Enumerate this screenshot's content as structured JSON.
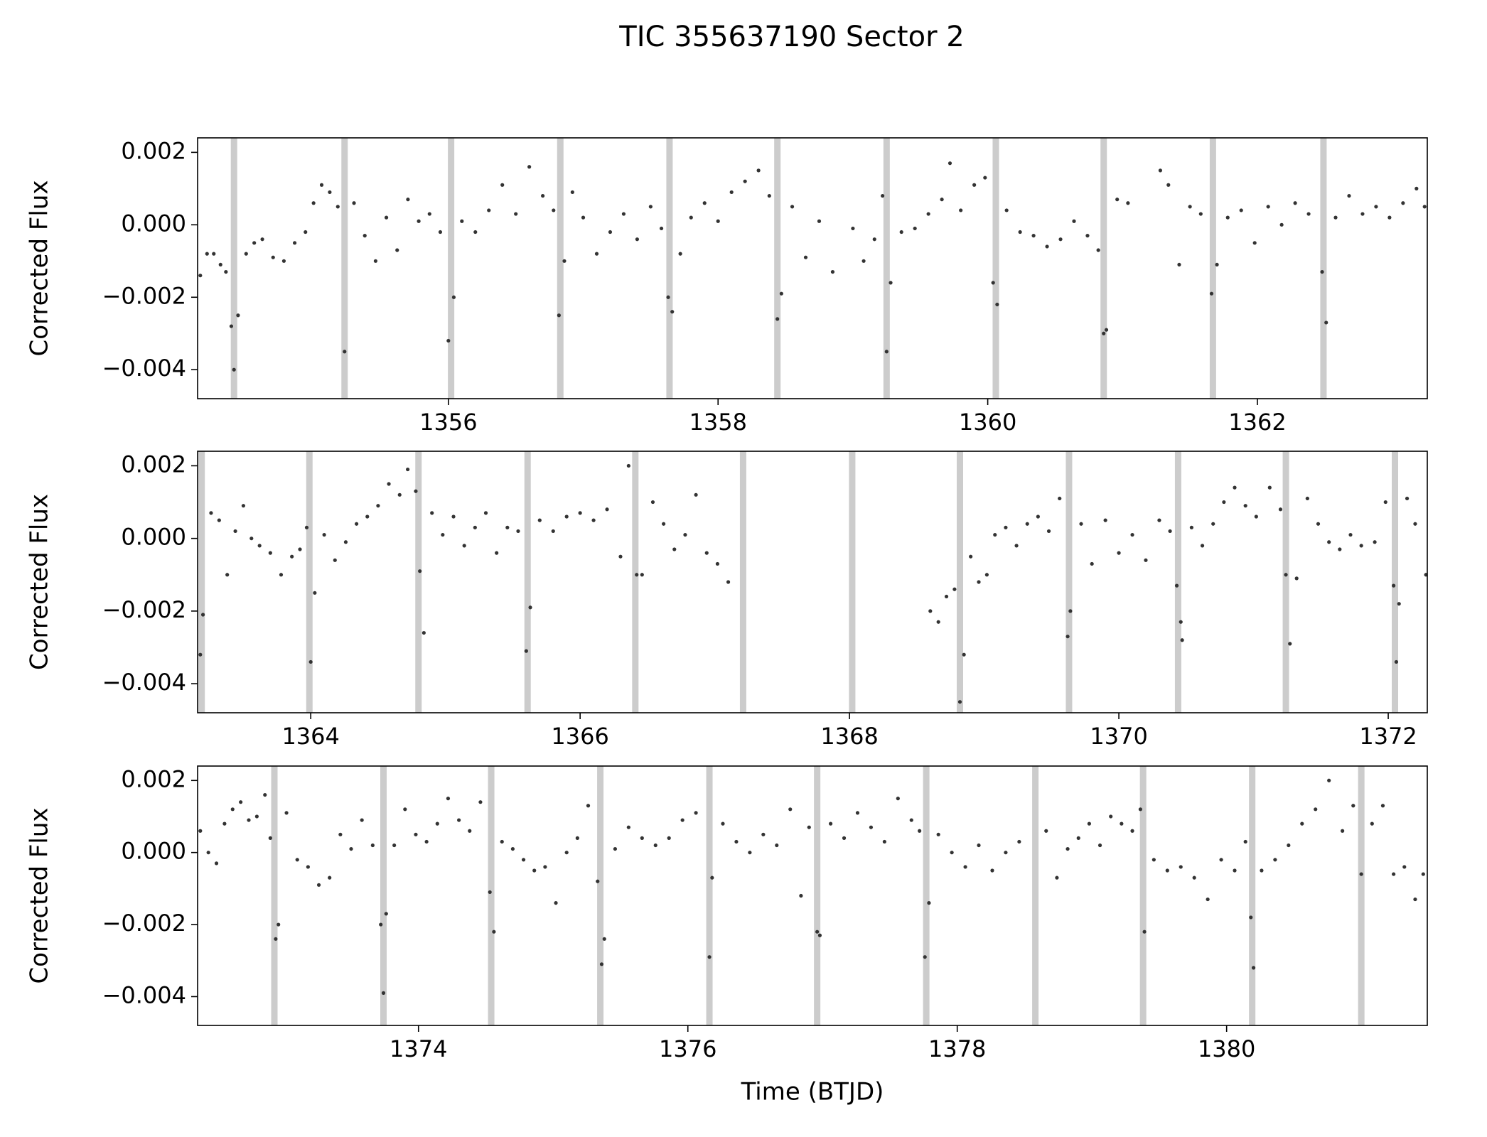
{
  "title": "TIC 355637190     Sector 2",
  "chart_data": [
    {
      "type": "scatter",
      "ylabel": "Corrected Flux",
      "color": "#333333",
      "band_color": "#cccccc",
      "xlim": [
        1354.14,
        1363.26
      ],
      "ylim": [
        -0.0048,
        0.0024
      ],
      "xticks": [
        1356,
        1358,
        1360,
        1362
      ],
      "yticks": [
        0.002,
        {
          "value": 0,
          "label": "0.000"
        },
        {
          "value": -0.002,
          "label": "−0.002"
        },
        {
          "value": -0.004,
          "label": "−0.004"
        }
      ],
      "transits": [
        1354.41,
        1355.23,
        1356.02,
        1356.83,
        1357.64,
        1358.44,
        1359.25,
        1360.06,
        1360.86,
        1361.67,
        1362.49
      ],
      "x": [
        1354.16,
        1354.21,
        1354.26,
        1354.31,
        1354.35,
        1354.39,
        1354.41,
        1354.44,
        1354.5,
        1354.56,
        1354.62,
        1354.7,
        1354.78,
        1354.86,
        1354.94,
        1355.0,
        1355.06,
        1355.12,
        1355.18,
        1355.23,
        1355.3,
        1355.38,
        1355.46,
        1355.54,
        1355.62,
        1355.7,
        1355.78,
        1355.86,
        1355.94,
        1356.0,
        1356.04,
        1356.1,
        1356.2,
        1356.3,
        1356.4,
        1356.5,
        1356.6,
        1356.7,
        1356.78,
        1356.82,
        1356.86,
        1356.92,
        1357.0,
        1357.1,
        1357.2,
        1357.3,
        1357.4,
        1357.5,
        1357.58,
        1357.63,
        1357.66,
        1357.72,
        1357.8,
        1357.9,
        1358.0,
        1358.1,
        1358.2,
        1358.3,
        1358.38,
        1358.44,
        1358.47,
        1358.55,
        1358.65,
        1358.75,
        1358.85,
        1359.0,
        1359.08,
        1359.16,
        1359.22,
        1359.25,
        1359.28,
        1359.36,
        1359.46,
        1359.56,
        1359.66,
        1359.72,
        1359.8,
        1359.9,
        1359.98,
        1360.04,
        1360.07,
        1360.14,
        1360.24,
        1360.34,
        1360.44,
        1360.54,
        1360.64,
        1360.74,
        1360.82,
        1360.86,
        1360.88,
        1360.96,
        1361.04,
        1361.28,
        1361.34,
        1361.42,
        1361.5,
        1361.58,
        1361.66,
        1361.7,
        1361.78,
        1361.88,
        1361.98,
        1362.08,
        1362.18,
        1362.28,
        1362.38,
        1362.48,
        1362.51,
        1362.58,
        1362.68,
        1362.78,
        1362.88,
        1362.98,
        1363.08,
        1363.18,
        1363.24
      ],
      "values": [
        -0.0014,
        -0.0008,
        -0.0008,
        -0.0011,
        -0.0013,
        -0.0028,
        -0.004,
        -0.0025,
        -0.0008,
        -0.0005,
        -0.0004,
        -0.0009,
        -0.001,
        -0.0005,
        -0.0002,
        0.0006,
        0.0011,
        0.0009,
        0.0005,
        -0.0035,
        0.0006,
        -0.0003,
        -0.001,
        0.0002,
        -0.0007,
        0.0007,
        0.0001,
        0.0003,
        -0.0002,
        -0.0032,
        -0.002,
        0.0001,
        -0.0002,
        0.0004,
        0.0011,
        0.0003,
        0.0016,
        0.0008,
        0.0004,
        -0.0025,
        -0.001,
        0.0009,
        0.0002,
        -0.0008,
        -0.0002,
        0.0003,
        -0.0004,
        0.0005,
        -0.0001,
        -0.002,
        -0.0024,
        -0.0008,
        0.0002,
        0.0006,
        0.0001,
        0.0009,
        0.0012,
        0.0015,
        0.0008,
        -0.0026,
        -0.0019,
        0.0005,
        -0.0009,
        0.0001,
        -0.0013,
        -0.0001,
        -0.001,
        -0.0004,
        0.0008,
        -0.0035,
        -0.0016,
        -0.0002,
        -0.0001,
        0.0003,
        0.0007,
        0.0017,
        0.0004,
        0.0011,
        0.0013,
        -0.0016,
        -0.0022,
        0.0004,
        -0.0002,
        -0.0003,
        -0.0006,
        -0.0004,
        0.0001,
        -0.0003,
        -0.0007,
        -0.003,
        -0.0029,
        0.0007,
        0.0006,
        0.0015,
        0.0011,
        -0.0011,
        0.0005,
        0.0003,
        -0.0019,
        -0.0011,
        0.0002,
        0.0004,
        -0.0005,
        0.0005,
        0,
        0.0006,
        0.0003,
        -0.0013,
        -0.0027,
        0.0002,
        0.0008,
        0.0003,
        0.0005,
        0.0002,
        0.0006,
        0.001,
        0.0005
      ]
    },
    {
      "type": "scatter",
      "ylabel": "Corrected Flux",
      "color": "#333333",
      "band_color": "#cccccc",
      "xlim": [
        1363.16,
        1372.29
      ],
      "ylim": [
        -0.0048,
        0.0024
      ],
      "xticks": [
        1364,
        1366,
        1368,
        1370,
        1372
      ],
      "yticks": [
        0.002,
        {
          "value": 0,
          "label": "0.000"
        },
        {
          "value": -0.002,
          "label": "−0.002"
        },
        {
          "value": -0.004,
          "label": "−0.004"
        }
      ],
      "transits": [
        1363.19,
        1363.99,
        1364.8,
        1365.61,
        1366.41,
        1367.21,
        1368.02,
        1368.82,
        1369.63,
        1370.44,
        1371.24,
        1372.05
      ],
      "x": [
        1363.18,
        1363.2,
        1363.26,
        1363.32,
        1363.38,
        1363.44,
        1363.5,
        1363.56,
        1363.62,
        1363.7,
        1363.78,
        1363.86,
        1363.92,
        1363.97,
        1364.0,
        1364.03,
        1364.1,
        1364.18,
        1364.26,
        1364.34,
        1364.42,
        1364.5,
        1364.58,
        1364.66,
        1364.72,
        1364.78,
        1364.81,
        1364.84,
        1364.9,
        1364.98,
        1365.06,
        1365.14,
        1365.22,
        1365.3,
        1365.38,
        1365.46,
        1365.54,
        1365.6,
        1365.63,
        1365.7,
        1365.8,
        1365.9,
        1366.0,
        1366.1,
        1366.2,
        1366.3,
        1366.36,
        1366.42,
        1366.46,
        1366.54,
        1366.62,
        1366.7,
        1366.78,
        1366.86,
        1366.94,
        1367.02,
        1367.1,
        1368.6,
        1368.66,
        1368.72,
        1368.78,
        1368.82,
        1368.85,
        1368.9,
        1368.96,
        1369.02,
        1369.08,
        1369.16,
        1369.24,
        1369.32,
        1369.4,
        1369.48,
        1369.56,
        1369.62,
        1369.64,
        1369.72,
        1369.8,
        1369.9,
        1370.0,
        1370.1,
        1370.2,
        1370.3,
        1370.38,
        1370.43,
        1370.46,
        1370.47,
        1370.54,
        1370.62,
        1370.7,
        1370.78,
        1370.86,
        1370.94,
        1371.02,
        1371.12,
        1371.2,
        1371.24,
        1371.27,
        1371.32,
        1371.4,
        1371.48,
        1371.56,
        1371.64,
        1371.72,
        1371.8,
        1371.9,
        1371.98,
        1372.04,
        1372.06,
        1372.08,
        1372.14,
        1372.2,
        1372.28
      ],
      "values": [
        -0.0032,
        -0.0021,
        0.0007,
        0.0005,
        -0.001,
        0.0002,
        0.0009,
        0,
        -0.0002,
        -0.0004,
        -0.001,
        -0.0005,
        -0.0003,
        0.0003,
        -0.0034,
        -0.0015,
        0.0001,
        -0.0006,
        -0.0001,
        0.0004,
        0.0006,
        0.0009,
        0.0015,
        0.0012,
        0.0019,
        0.0013,
        -0.0009,
        -0.0026,
        0.0007,
        0.0001,
        0.0006,
        -0.0002,
        0.0003,
        0.0007,
        -0.0004,
        0.0003,
        0.0002,
        -0.0031,
        -0.0019,
        0.0005,
        0.0002,
        0.0006,
        0.0007,
        0.0005,
        0.0008,
        -0.0005,
        0.002,
        -0.001,
        -0.001,
        0.001,
        0.0004,
        -0.0003,
        0.0001,
        0.0012,
        -0.0004,
        -0.0007,
        -0.0012,
        -0.002,
        -0.0023,
        -0.0016,
        -0.0014,
        -0.0045,
        -0.0032,
        -0.0005,
        -0.0012,
        -0.001,
        0.0001,
        0.0003,
        -0.0002,
        0.0004,
        0.0006,
        0.0002,
        0.0011,
        -0.0027,
        -0.002,
        0.0004,
        -0.0007,
        0.0005,
        -0.0004,
        0.0001,
        -0.0006,
        0.0005,
        0.0002,
        -0.0013,
        -0.0023,
        -0.0028,
        0.0003,
        -0.0002,
        0.0004,
        0.001,
        0.0014,
        0.0009,
        0.0006,
        0.0014,
        0.0008,
        -0.001,
        -0.0029,
        -0.0011,
        0.0011,
        0.0004,
        -0.0001,
        -0.0003,
        0.0001,
        -0.0002,
        -0.0001,
        0.001,
        -0.0013,
        -0.0034,
        -0.0018,
        0.0011,
        0.0004,
        -0.001
      ]
    },
    {
      "type": "scatter",
      "ylabel": "Corrected Flux",
      "xlabel": "Time (BTJD)",
      "color": "#333333",
      "band_color": "#cccccc",
      "xlim": [
        1372.36,
        1381.49
      ],
      "ylim": [
        -0.0048,
        0.0024
      ],
      "xticks": [
        1374,
        1376,
        1378,
        1380
      ],
      "yticks": [
        0.002,
        {
          "value": 0,
          "label": "0.000"
        },
        {
          "value": -0.002,
          "label": "−0.002"
        },
        {
          "value": -0.004,
          "label": "−0.004"
        }
      ],
      "transits": [
        1372.93,
        1373.74,
        1374.54,
        1375.35,
        1376.16,
        1376.96,
        1377.77,
        1378.58,
        1379.38,
        1380.19,
        1381.0
      ],
      "x": [
        1372.38,
        1372.44,
        1372.5,
        1372.56,
        1372.62,
        1372.68,
        1372.74,
        1372.8,
        1372.86,
        1372.9,
        1372.94,
        1372.96,
        1373.02,
        1373.1,
        1373.18,
        1373.26,
        1373.34,
        1373.42,
        1373.5,
        1373.58,
        1373.66,
        1373.72,
        1373.74,
        1373.76,
        1373.82,
        1373.9,
        1373.98,
        1374.06,
        1374.14,
        1374.22,
        1374.3,
        1374.38,
        1374.46,
        1374.53,
        1374.56,
        1374.62,
        1374.7,
        1374.78,
        1374.86,
        1374.94,
        1375.02,
        1375.1,
        1375.18,
        1375.26,
        1375.33,
        1375.36,
        1375.38,
        1375.46,
        1375.56,
        1375.66,
        1375.76,
        1375.86,
        1375.96,
        1376.06,
        1376.16,
        1376.18,
        1376.26,
        1376.36,
        1376.46,
        1376.56,
        1376.66,
        1376.76,
        1376.84,
        1376.9,
        1376.96,
        1376.98,
        1377.06,
        1377.16,
        1377.26,
        1377.36,
        1377.46,
        1377.56,
        1377.66,
        1377.72,
        1377.76,
        1377.79,
        1377.86,
        1377.96,
        1378.06,
        1378.16,
        1378.26,
        1378.36,
        1378.46,
        1378.66,
        1378.74,
        1378.82,
        1378.9,
        1378.98,
        1379.06,
        1379.14,
        1379.22,
        1379.3,
        1379.36,
        1379.39,
        1379.46,
        1379.56,
        1379.66,
        1379.76,
        1379.86,
        1379.96,
        1380.06,
        1380.14,
        1380.18,
        1380.2,
        1380.26,
        1380.36,
        1380.46,
        1380.56,
        1380.66,
        1380.76,
        1380.86,
        1380.94,
        1381.0,
        1381.08,
        1381.16,
        1381.24,
        1381.32,
        1381.4,
        1381.46
      ],
      "values": [
        0.0006,
        0,
        -0.0003,
        0.0008,
        0.0012,
        0.0014,
        0.0009,
        0.001,
        0.0016,
        0.0004,
        -0.0024,
        -0.002,
        0.0011,
        -0.0002,
        -0.0004,
        -0.0009,
        -0.0007,
        0.0005,
        0.0001,
        0.0009,
        0.0002,
        -0.002,
        -0.0039,
        -0.0017,
        0.0002,
        0.0012,
        0.0005,
        0.0003,
        0.0008,
        0.0015,
        0.0009,
        0.0006,
        0.0014,
        -0.0011,
        -0.0022,
        0.0003,
        0.0001,
        -0.0002,
        -0.0005,
        -0.0004,
        -0.0014,
        0,
        0.0004,
        0.0013,
        -0.0008,
        -0.0031,
        -0.0024,
        0.0001,
        0.0007,
        0.0004,
        0.0002,
        0.0004,
        0.0009,
        0.0011,
        -0.0029,
        -0.0007,
        0.0008,
        0.0003,
        0,
        0.0005,
        0.0002,
        0.0012,
        -0.0012,
        0.0007,
        -0.0022,
        -0.0023,
        0.0008,
        0.0004,
        0.0011,
        0.0007,
        0.0003,
        0.0015,
        0.0009,
        0.0006,
        -0.0029,
        -0.0014,
        0.0005,
        0,
        -0.0004,
        0.0002,
        -0.0005,
        0,
        0.0003,
        0.0006,
        -0.0007,
        0.0001,
        0.0004,
        0.0008,
        0.0002,
        0.001,
        0.0008,
        0.0006,
        0.0012,
        -0.0022,
        -0.0002,
        -0.0005,
        -0.0004,
        -0.0007,
        -0.0013,
        -0.0002,
        -0.0005,
        0.0003,
        -0.0018,
        -0.0032,
        -0.0005,
        -0.0002,
        0.0002,
        0.0008,
        0.0012,
        0.002,
        0.0006,
        0.0013,
        -0.0006,
        0.0008,
        0.0013,
        -0.0006,
        -0.0004,
        -0.0013,
        -0.0006
      ]
    }
  ]
}
